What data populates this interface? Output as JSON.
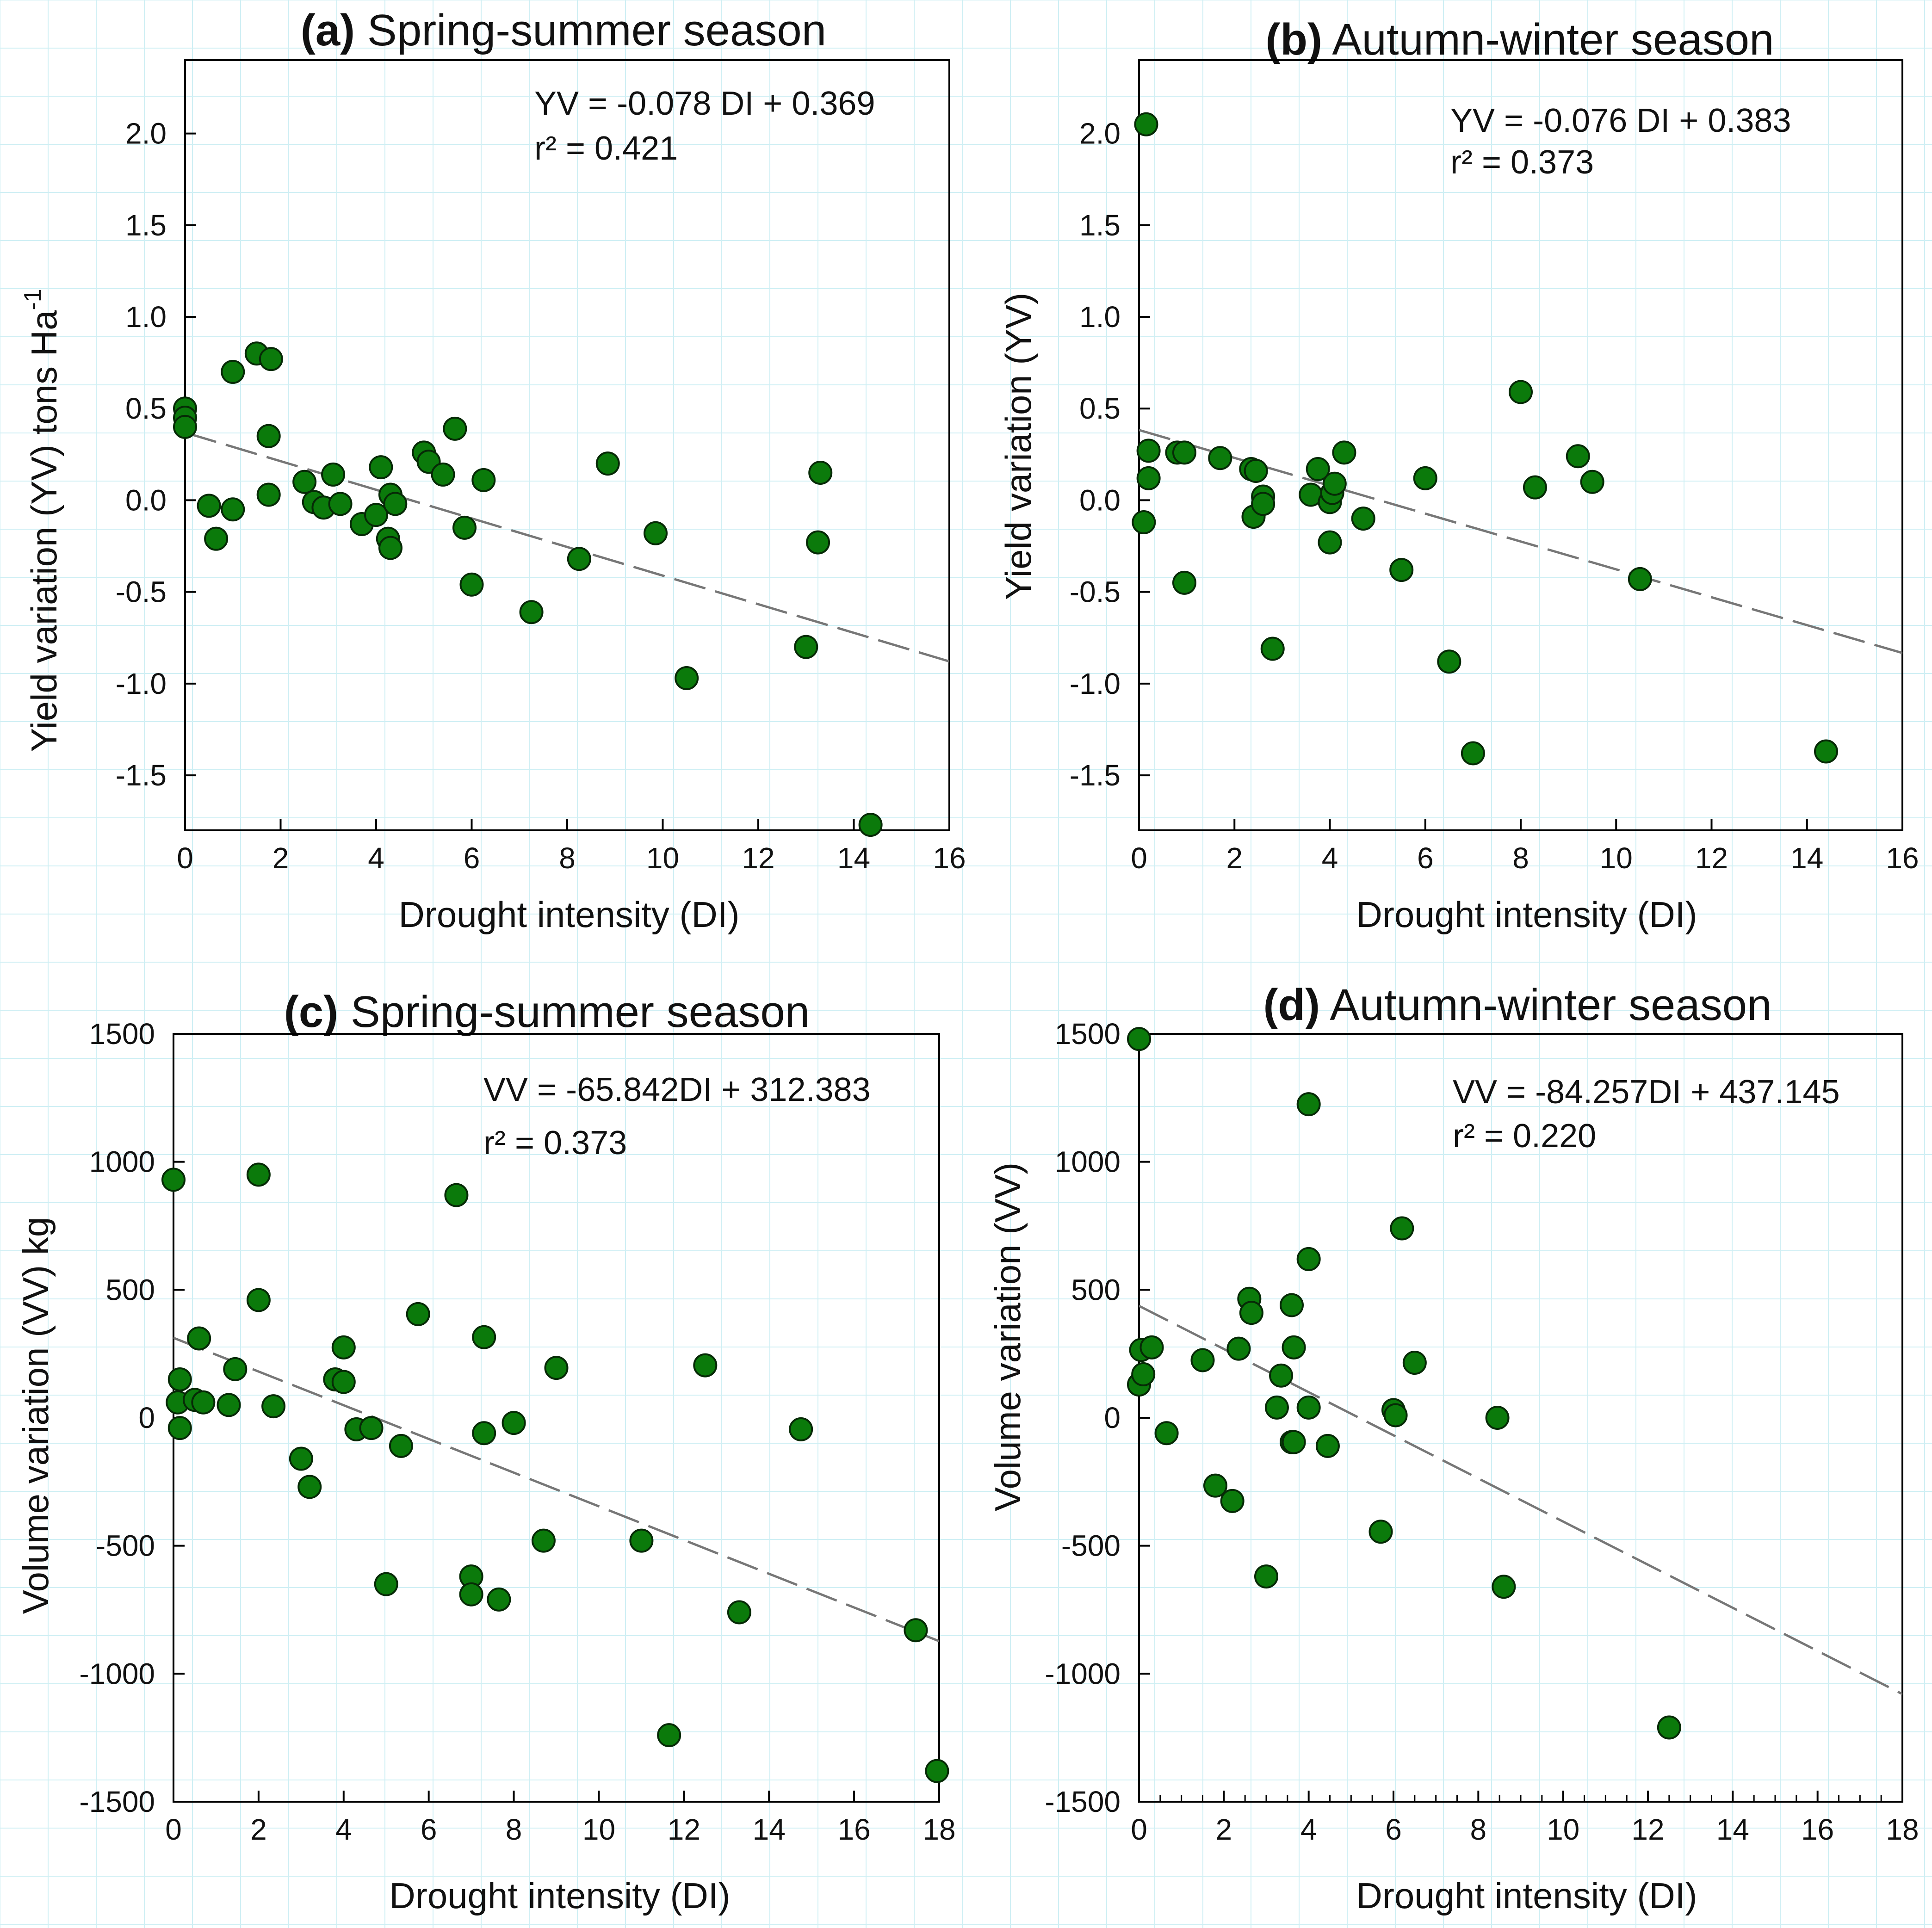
{
  "figure": {
    "background": "#ffffff",
    "grid_color": "#cfeff4",
    "point_color": "#0b7a0b",
    "point_edge": "#062a06",
    "line_color": "#777777"
  },
  "chart_data": [
    {
      "id": "a",
      "type": "scatter",
      "letter": "(a)",
      "title": "Spring-summer season",
      "xlabel": "Drought intensity (DI)",
      "ylabel": "Yield variation (YV) tons Ha",
      "ylabel_sup": "-1",
      "xlim": [
        0,
        16
      ],
      "ylim": [
        -1.8,
        2.4
      ],
      "xticks": [
        0,
        2,
        4,
        6,
        8,
        10,
        12,
        14,
        16
      ],
      "yticks": [
        -1.5,
        -1.0,
        -0.5,
        0.0,
        0.5,
        1.0,
        1.5,
        2.0
      ],
      "ytick_labels": [
        "-1.5",
        "-1.0",
        "-0.5",
        "0.0",
        "0.5",
        "1.0",
        "1.5",
        "2.0"
      ],
      "minor_xticks": false,
      "equation": "YV = -0.078 DI + 0.369",
      "r2": "r² = 0.421",
      "regression": {
        "slope": -0.078,
        "intercept": 0.369
      },
      "x": [
        0.0,
        0.0,
        0.0,
        0.5,
        0.65,
        1.0,
        1.0,
        1.5,
        1.8,
        1.75,
        1.75,
        2.5,
        2.7,
        2.9,
        3.1,
        3.25,
        3.7,
        4.0,
        4.1,
        4.25,
        4.3,
        4.3,
        4.4,
        5.0,
        5.1,
        5.4,
        5.65,
        5.85,
        6.0,
        6.25,
        7.25,
        8.25,
        8.85,
        9.85,
        10.5,
        13.0,
        13.25,
        13.3,
        14.35
      ],
      "y": [
        0.5,
        0.45,
        0.4,
        -0.03,
        -0.21,
        0.7,
        -0.05,
        0.8,
        0.77,
        0.35,
        0.03,
        0.1,
        -0.01,
        -0.04,
        0.14,
        -0.02,
        -0.13,
        -0.08,
        0.18,
        -0.21,
        -0.26,
        0.03,
        -0.02,
        0.26,
        0.21,
        0.14,
        0.39,
        -0.15,
        -0.46,
        0.11,
        -0.61,
        -0.32,
        0.2,
        -0.18,
        -0.97,
        -0.8,
        -0.23,
        0.15,
        -1.77
      ]
    },
    {
      "id": "b",
      "type": "scatter",
      "letter": "(b)",
      "title": "Autumn-winter season",
      "xlabel": "Drought intensity (DI)",
      "ylabel": "Yield variation (YV)",
      "ylabel_sup": "",
      "xlim": [
        0,
        16
      ],
      "ylim": [
        -1.8,
        2.4
      ],
      "xticks": [
        0,
        2,
        4,
        6,
        8,
        10,
        12,
        14,
        16
      ],
      "yticks": [
        -1.5,
        -1.0,
        -0.5,
        0.0,
        0.5,
        1.0,
        1.5,
        2.0
      ],
      "ytick_labels": [
        "-1.5",
        "-1.0",
        "-0.5",
        "0.0",
        "0.5",
        "1.0",
        "1.5",
        "2.0"
      ],
      "minor_xticks": false,
      "equation": "YV = -0.076 DI + 0.383",
      "r2": "r² = 0.373",
      "regression": {
        "slope": -0.076,
        "intercept": 0.383
      },
      "x": [
        0.15,
        0.2,
        0.2,
        0.1,
        0.8,
        0.95,
        0.95,
        1.7,
        2.35,
        2.45,
        2.4,
        2.6,
        2.6,
        2.8,
        3.6,
        3.75,
        4.0,
        4.0,
        4.05,
        4.1,
        4.3,
        4.7,
        5.5,
        6.0,
        6.5,
        7.0,
        8.0,
        8.3,
        9.2,
        9.5,
        10.5,
        14.4
      ],
      "y": [
        2.05,
        0.27,
        0.12,
        -0.12,
        0.26,
        0.26,
        -0.45,
        0.23,
        0.17,
        0.16,
        -0.09,
        0.02,
        -0.02,
        -0.81,
        0.03,
        0.17,
        -0.01,
        -0.23,
        0.04,
        0.09,
        0.26,
        -0.1,
        -0.38,
        0.12,
        -0.88,
        -1.38,
        0.59,
        0.07,
        0.24,
        0.1,
        -0.43,
        -1.37
      ]
    },
    {
      "id": "c",
      "type": "scatter",
      "letter": "(c)",
      "title": "Spring-summer season",
      "xlabel": "Drought intensity (DI)",
      "ylabel": "Volume variation (VV) kg",
      "ylabel_sup": "",
      "xlim": [
        0,
        18
      ],
      "ylim": [
        -1500,
        1500
      ],
      "xticks": [
        0,
        2,
        4,
        6,
        8,
        10,
        12,
        14,
        16,
        18
      ],
      "yticks": [
        -1500,
        -1000,
        -500,
        0,
        500,
        1000,
        1500
      ],
      "ytick_labels": [
        "-1500",
        "-1000",
        "-500",
        "0",
        "500",
        "1000",
        "1500"
      ],
      "minor_xticks": false,
      "equation": "VV = -65.842DI + 312.383",
      "r2": "r² = 0.373",
      "regression": {
        "slope": -65.842,
        "intercept": 312.383
      },
      "x": [
        0.0,
        0.1,
        0.15,
        0.15,
        0.5,
        0.6,
        0.7,
        1.3,
        1.45,
        2.0,
        2.0,
        2.35,
        3.0,
        3.2,
        3.8,
        4.0,
        4.0,
        4.3,
        4.65,
        5.0,
        5.35,
        5.75,
        6.65,
        7.0,
        7.0,
        7.3,
        7.3,
        7.65,
        8.0,
        8.7,
        9.0,
        11.0,
        11.65,
        12.5,
        13.3,
        14.75,
        17.45,
        17.95
      ],
      "y": [
        930,
        60,
        150,
        -40,
        70,
        310,
        60,
        50,
        190,
        950,
        460,
        45,
        -160,
        -270,
        150,
        275,
        140,
        -45,
        -40,
        -650,
        -110,
        405,
        870,
        -620,
        -690,
        315,
        -60,
        -710,
        -20,
        -480,
        195,
        -480,
        -1240,
        205,
        -760,
        -45,
        -830,
        -1380
      ]
    },
    {
      "id": "d",
      "type": "scatter",
      "letter": "(d)",
      "title": "Autumn-winter season",
      "xlabel": "Drought intensity (DI)",
      "ylabel": "Volume variation (VV)",
      "ylabel_sup": "",
      "xlim": [
        0,
        18
      ],
      "ylim": [
        -1500,
        1500
      ],
      "xticks": [
        0,
        2,
        4,
        6,
        8,
        10,
        12,
        14,
        16,
        18
      ],
      "yticks": [
        -1500,
        -1000,
        -500,
        0,
        500,
        1000,
        1500
      ],
      "ytick_labels": [
        "-1500",
        "-1000",
        "-500",
        "0",
        "500",
        "1000",
        "1500"
      ],
      "minor_xticks": true,
      "equation": "VV = -84.257DI + 437.145",
      "r2": "r² = 0.220",
      "regression": {
        "slope": -84.257,
        "intercept": 437.145
      },
      "x": [
        0.0,
        0.0,
        0.05,
        0.1,
        0.3,
        0.65,
        1.5,
        1.8,
        2.2,
        2.35,
        2.6,
        2.65,
        3.0,
        3.25,
        3.35,
        3.6,
        3.6,
        3.65,
        3.65,
        4.0,
        4.0,
        4.0,
        4.45,
        5.7,
        6.0,
        6.05,
        6.2,
        6.5,
        8.45,
        8.6,
        12.5
      ],
      "y": [
        1480,
        130,
        265,
        170,
        275,
        -60,
        225,
        -265,
        -325,
        270,
        465,
        410,
        -620,
        40,
        165,
        440,
        -95,
        275,
        -95,
        1225,
        620,
        40,
        -110,
        -445,
        30,
        10,
        740,
        215,
        0,
        -660,
        -1210
      ]
    }
  ]
}
